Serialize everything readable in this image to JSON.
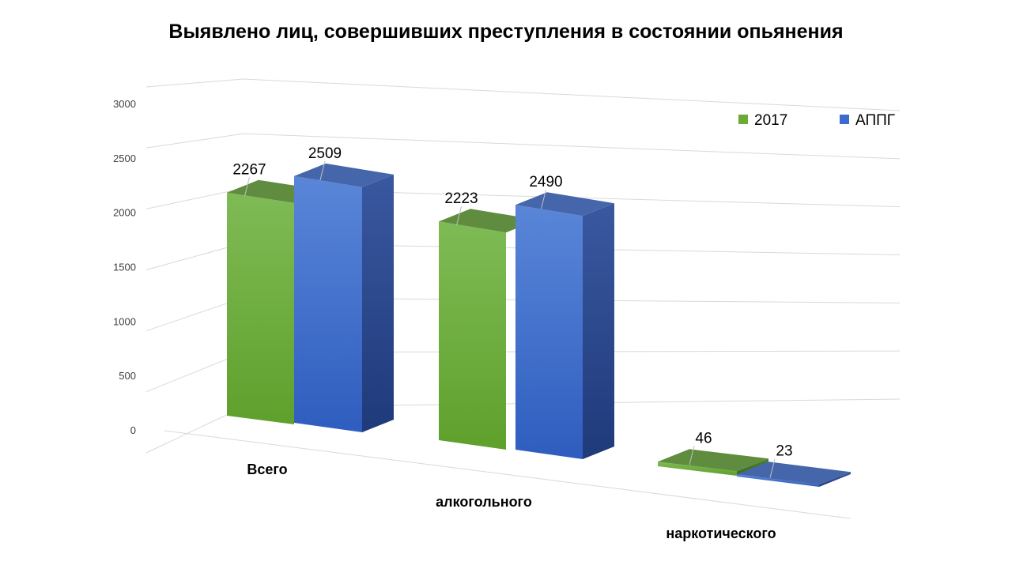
{
  "chart_data": {
    "type": "bar",
    "title": "Выявлено лиц, совершивших преступления в состоянии опьянения",
    "categories": [
      "Всего",
      "алкогольного",
      "наркотического"
    ],
    "series": [
      {
        "name": "2017",
        "values": [
          2267,
          2223,
          46
        ],
        "color": "#6aaa35"
      },
      {
        "name": "АППГ",
        "values": [
          2509,
          2490,
          23
        ],
        "color": "#3b6ccc"
      }
    ],
    "yticks": [
      0,
      500,
      1000,
      1500,
      2000,
      2500,
      3000
    ],
    "ylim": [
      0,
      3000
    ],
    "xlabel": "",
    "ylabel": "",
    "grid": true,
    "legend_position": "top-right",
    "style": "3d-clustered-column"
  }
}
